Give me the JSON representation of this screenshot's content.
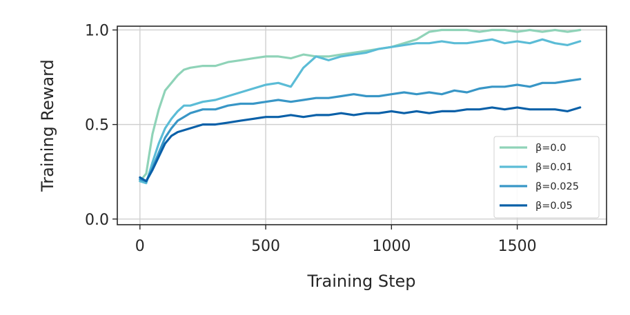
{
  "chart_data": {
    "type": "line",
    "xlabel": "Training Step",
    "ylabel": "Training Reward",
    "xlim": [
      -90,
      1855
    ],
    "ylim": [
      -0.03,
      1.02
    ],
    "xticks": [
      0,
      500,
      1000,
      1500
    ],
    "yticks": [
      0.0,
      0.5,
      1.0
    ],
    "xtick_labels": [
      "0",
      "500",
      "1000",
      "1500"
    ],
    "ytick_labels": [
      "0.0",
      "0.5",
      "1.0"
    ],
    "grid": true,
    "legend_position": "lower-right",
    "series": [
      {
        "name": "β=0.0",
        "color": "#8fd3b8",
        "x": [
          0,
          25,
          50,
          75,
          100,
          125,
          150,
          175,
          200,
          250,
          300,
          350,
          400,
          450,
          500,
          550,
          600,
          650,
          700,
          750,
          800,
          850,
          900,
          950,
          1000,
          1050,
          1100,
          1150,
          1200,
          1250,
          1300,
          1350,
          1400,
          1450,
          1500,
          1550,
          1600,
          1650,
          1700,
          1750
        ],
        "y": [
          0.2,
          0.24,
          0.45,
          0.58,
          0.68,
          0.72,
          0.76,
          0.79,
          0.8,
          0.81,
          0.81,
          0.83,
          0.84,
          0.85,
          0.86,
          0.86,
          0.85,
          0.87,
          0.86,
          0.86,
          0.87,
          0.88,
          0.89,
          0.9,
          0.91,
          0.93,
          0.95,
          0.99,
          1.0,
          1.0,
          1.0,
          0.99,
          1.0,
          1.0,
          0.99,
          1.0,
          0.99,
          1.0,
          0.99,
          1.0
        ]
      },
      {
        "name": "β=0.01",
        "color": "#5bbcd6",
        "x": [
          0,
          25,
          50,
          75,
          100,
          125,
          150,
          175,
          200,
          250,
          300,
          350,
          400,
          450,
          500,
          550,
          600,
          650,
          700,
          750,
          800,
          850,
          900,
          950,
          1000,
          1050,
          1100,
          1150,
          1200,
          1250,
          1300,
          1350,
          1400,
          1450,
          1500,
          1550,
          1600,
          1650,
          1700,
          1750
        ],
        "y": [
          0.2,
          0.19,
          0.3,
          0.4,
          0.48,
          0.53,
          0.57,
          0.6,
          0.6,
          0.62,
          0.63,
          0.65,
          0.67,
          0.69,
          0.71,
          0.72,
          0.7,
          0.8,
          0.86,
          0.84,
          0.86,
          0.87,
          0.88,
          0.9,
          0.91,
          0.92,
          0.93,
          0.93,
          0.94,
          0.93,
          0.93,
          0.94,
          0.95,
          0.93,
          0.94,
          0.93,
          0.95,
          0.93,
          0.92,
          0.94
        ]
      },
      {
        "name": "β=0.025",
        "color": "#3896c6",
        "x": [
          0,
          25,
          50,
          75,
          100,
          125,
          150,
          175,
          200,
          250,
          300,
          350,
          400,
          450,
          500,
          550,
          600,
          650,
          700,
          750,
          800,
          850,
          900,
          950,
          1000,
          1050,
          1100,
          1150,
          1200,
          1250,
          1300,
          1350,
          1400,
          1450,
          1500,
          1550,
          1600,
          1650,
          1700,
          1750
        ],
        "y": [
          0.21,
          0.2,
          0.27,
          0.35,
          0.43,
          0.48,
          0.52,
          0.54,
          0.56,
          0.58,
          0.58,
          0.6,
          0.61,
          0.61,
          0.62,
          0.63,
          0.62,
          0.63,
          0.64,
          0.64,
          0.65,
          0.66,
          0.65,
          0.65,
          0.66,
          0.67,
          0.66,
          0.67,
          0.66,
          0.68,
          0.67,
          0.69,
          0.7,
          0.7,
          0.71,
          0.7,
          0.72,
          0.72,
          0.73,
          0.74
        ]
      },
      {
        "name": "β=0.05",
        "color": "#0a60a8",
        "x": [
          0,
          25,
          50,
          75,
          100,
          125,
          150,
          175,
          200,
          250,
          300,
          350,
          400,
          450,
          500,
          550,
          600,
          650,
          700,
          750,
          800,
          850,
          900,
          950,
          1000,
          1050,
          1100,
          1150,
          1200,
          1250,
          1300,
          1350,
          1400,
          1450,
          1500,
          1550,
          1600,
          1650,
          1700,
          1750
        ],
        "y": [
          0.22,
          0.2,
          0.26,
          0.33,
          0.4,
          0.44,
          0.46,
          0.47,
          0.48,
          0.5,
          0.5,
          0.51,
          0.52,
          0.53,
          0.54,
          0.54,
          0.55,
          0.54,
          0.55,
          0.55,
          0.56,
          0.55,
          0.56,
          0.56,
          0.57,
          0.56,
          0.57,
          0.56,
          0.57,
          0.57,
          0.58,
          0.58,
          0.59,
          0.58,
          0.59,
          0.58,
          0.58,
          0.58,
          0.57,
          0.59
        ]
      }
    ]
  }
}
